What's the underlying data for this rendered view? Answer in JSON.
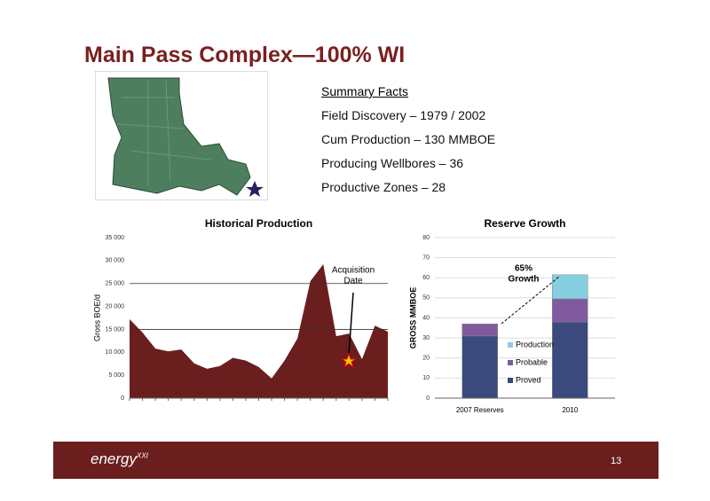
{
  "title": "Main Pass Complex—100% WI",
  "summary": {
    "heading": "Summary Facts",
    "facts": [
      "Field Discovery – 1979 / 2002",
      "Cum Production – 130 MMBOE",
      "Producing Wellbores –  36",
      "Productive Zones –  28"
    ]
  },
  "chart_data": [
    {
      "type": "area",
      "title": "Historical Production",
      "y_label": "Gross BOE/d",
      "color": "#6b1e1e",
      "categories": [
        null,
        null,
        null,
        null,
        null,
        null,
        null,
        null,
        null,
        null,
        null,
        null,
        null,
        null,
        null,
        null,
        null,
        null,
        null,
        null,
        null
      ],
      "values": [
        17200,
        14300,
        10800,
        10200,
        10600,
        7600,
        6400,
        7000,
        8800,
        8200,
        6800,
        4300,
        8200,
        13000,
        25500,
        29200,
        13500,
        14100,
        8500,
        15800,
        14500
      ],
      "ylim": [
        0,
        35000
      ],
      "yticks": [
        0,
        {
          "value": 5000,
          "label": "5 000"
        },
        {
          "value": 10000,
          "label": "10 000"
        },
        {
          "value": 15000,
          "label": "15 000"
        },
        {
          "value": 20000,
          "label": "20 000"
        },
        {
          "value": 25000,
          "label": "25 000"
        },
        {
          "value": 30000,
          "label": "30 000"
        },
        {
          "value": 35000,
          "label": "35 000"
        }
      ],
      "grid_lines": [
        15000,
        25000
      ],
      "annotation": [
        "Acquisition",
        "Date"
      ]
    },
    {
      "type": "bar",
      "title": "Reserve Growth",
      "y_label": "GROSS MMBOE",
      "stacked": true,
      "categories": [
        "2007 Reserves",
        "2010"
      ],
      "series": [
        {
          "name": "Proved",
          "color": "#3b4a7c",
          "values": [
            31,
            38
          ]
        },
        {
          "name": "Probable",
          "color": "#7f5a9e",
          "values": [
            6,
            11.5
          ]
        },
        {
          "name": "Production",
          "color": "#86cfe0",
          "values": [
            0,
            12
          ]
        }
      ],
      "ylim": [
        0,
        80
      ],
      "yticks": [
        0,
        10,
        20,
        30,
        40,
        50,
        60,
        70,
        80
      ],
      "annotation": [
        "65%",
        "Growth"
      ]
    }
  ],
  "footer": {
    "logo": "energy",
    "logo_sup": "XXI",
    "page_number": "13"
  }
}
